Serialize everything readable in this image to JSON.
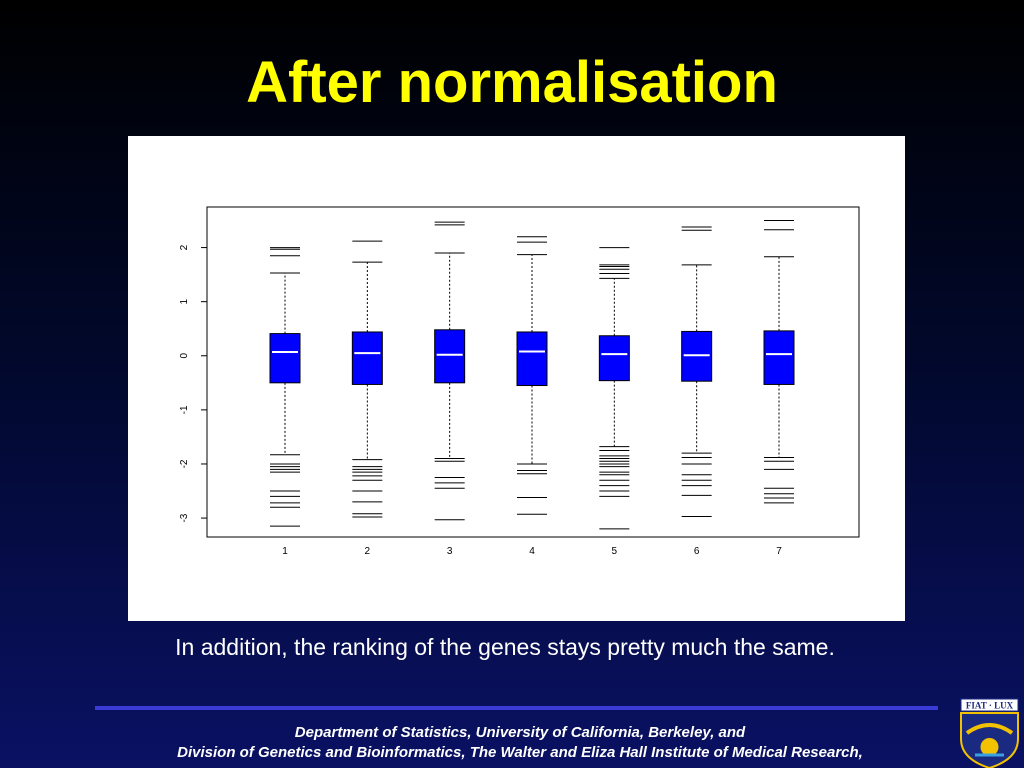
{
  "slide": {
    "title": "After normalisation",
    "caption": "In addition, the ranking of the genes stays pretty much the same.",
    "footer_line1": "Department of Statistics, University of California, Berkeley,  and",
    "footer_line2": "Division of Genetics and Bioinformatics, The Walter and Eliza Hall Institute of Medical Research,",
    "logo_text": "FIAT LUX"
  },
  "chart_data": {
    "type": "boxplot",
    "title": "",
    "xlabel": "",
    "ylabel": "",
    "categories": [
      "1",
      "2",
      "3",
      "4",
      "5",
      "6",
      "7"
    ],
    "y_ticks": [
      "-3",
      "-2",
      "-1",
      "0",
      "1",
      "2"
    ],
    "y_tick_values": [
      -3,
      -2,
      -1,
      0,
      1,
      2
    ],
    "ylim": [
      -3.35,
      2.75
    ],
    "grid": false,
    "box_color": "#0000ff",
    "median_color": "#ffffff",
    "boxes": [
      {
        "category": "1",
        "q1": -0.5,
        "median": 0.07,
        "q3": 0.41,
        "whisker_low": -1.83,
        "whisker_high": 1.53,
        "outliers": [
          -2.0,
          -2.05,
          -2.1,
          -2.15,
          -2.5,
          -2.6,
          -2.72,
          -2.8,
          -3.15,
          1.85,
          1.97,
          2.0
        ]
      },
      {
        "category": "2",
        "q1": -0.53,
        "median": 0.05,
        "q3": 0.44,
        "whisker_low": -1.92,
        "whisker_high": 1.73,
        "outliers": [
          -2.05,
          -2.1,
          -2.15,
          -2.22,
          -2.3,
          -2.5,
          -2.7,
          -2.92,
          -2.98,
          2.12
        ]
      },
      {
        "category": "3",
        "q1": -0.5,
        "median": 0.02,
        "q3": 0.48,
        "whisker_low": -1.9,
        "whisker_high": 1.9,
        "outliers": [
          -1.95,
          -2.25,
          -2.35,
          -2.45,
          -3.03,
          2.42,
          2.47
        ]
      },
      {
        "category": "4",
        "q1": -0.55,
        "median": 0.08,
        "q3": 0.44,
        "whisker_low": -2.0,
        "whisker_high": 1.87,
        "outliers": [
          -2.12,
          -2.18,
          -2.62,
          -2.93,
          2.1,
          2.2
        ]
      },
      {
        "category": "5",
        "q1": -0.46,
        "median": 0.03,
        "q3": 0.37,
        "whisker_low": -1.68,
        "whisker_high": 1.43,
        "outliers": [
          -1.75,
          -1.85,
          -1.9,
          -1.95,
          -2.0,
          -2.05,
          -2.15,
          -2.2,
          -2.3,
          -2.4,
          -2.5,
          -2.6,
          -3.2,
          1.52,
          1.6,
          1.65,
          1.68,
          2.0
        ]
      },
      {
        "category": "6",
        "q1": -0.47,
        "median": 0.01,
        "q3": 0.45,
        "whisker_low": -1.8,
        "whisker_high": 1.68,
        "outliers": [
          -1.88,
          -2.0,
          -2.2,
          -2.3,
          -2.4,
          -2.58,
          -2.97,
          2.32,
          2.38
        ]
      },
      {
        "category": "7",
        "q1": -0.53,
        "median": 0.03,
        "q3": 0.46,
        "whisker_low": -1.88,
        "whisker_high": 1.83,
        "outliers": [
          -1.95,
          -2.1,
          -2.45,
          -2.55,
          -2.63,
          -2.72,
          2.33,
          2.5
        ]
      }
    ]
  }
}
